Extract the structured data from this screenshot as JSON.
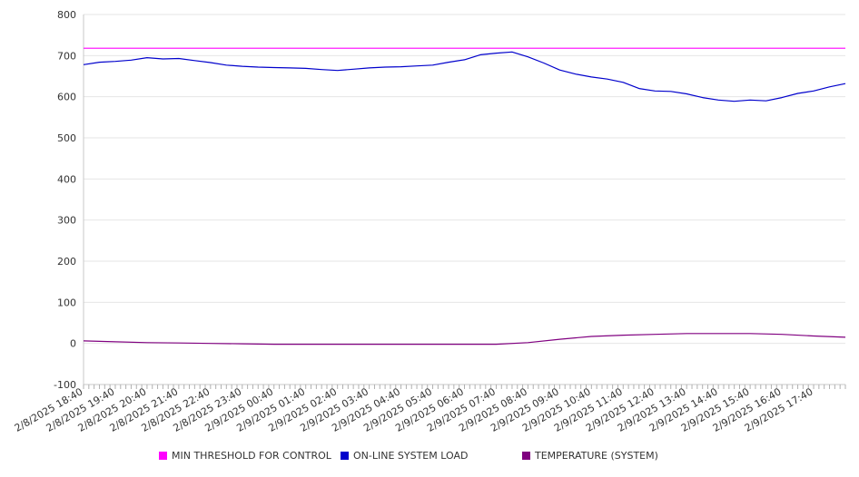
{
  "chart_data": {
    "type": "line",
    "title": "",
    "xlabel": "",
    "ylabel": "",
    "ylim": [
      -100,
      800
    ],
    "yticks": [
      -100,
      0,
      100,
      200,
      300,
      400,
      500,
      600,
      700,
      800
    ],
    "grid": true,
    "legend_position": "bottom",
    "x_tick_labels": [
      "2/8/2025 18:40",
      "2/8/2025 19:40",
      "2/8/2025 20:40",
      "2/8/2025 21:40",
      "2/8/2025 22:40",
      "2/8/2025 23:40",
      "2/9/2025 00:40",
      "2/9/2025 01:40",
      "2/9/2025 02:40",
      "2/9/2025 03:40",
      "2/9/2025 04:40",
      "2/9/2025 05:40",
      "2/9/2025 06:40",
      "2/9/2025 07:40",
      "2/9/2025 08:40",
      "2/9/2025 09:40",
      "2/9/2025 10:40",
      "2/9/2025 11:40",
      "2/9/2025 12:40",
      "2/9/2025 13:40",
      "2/9/2025 14:40",
      "2/9/2025 15:40",
      "2/9/2025 16:40",
      "2/9/2025 17:40"
    ],
    "x_range": [
      "2/8/2025 18:40",
      "2/9/2025 18:40"
    ],
    "series": [
      {
        "name": "MIN THRESHOLD FOR CONTROL",
        "color": "#ff00ff",
        "x": [
          "2/8/2025 18:40",
          "2/9/2025 18:40"
        ],
        "values": [
          718,
          718
        ]
      },
      {
        "name": "ON-LINE SYSTEM LOAD",
        "color": "#0000cc",
        "x": [
          "2/8/2025 18:40",
          "2/8/2025 19:10",
          "2/8/2025 19:40",
          "2/8/2025 20:10",
          "2/8/2025 20:40",
          "2/8/2025 21:10",
          "2/8/2025 21:40",
          "2/8/2025 22:10",
          "2/8/2025 22:40",
          "2/8/2025 23:10",
          "2/8/2025 23:40",
          "2/9/2025 00:10",
          "2/9/2025 00:40",
          "2/9/2025 01:10",
          "2/9/2025 01:40",
          "2/9/2025 02:10",
          "2/9/2025 02:40",
          "2/9/2025 03:10",
          "2/9/2025 03:40",
          "2/9/2025 04:10",
          "2/9/2025 04:40",
          "2/9/2025 05:10",
          "2/9/2025 05:40",
          "2/9/2025 06:10",
          "2/9/2025 06:40",
          "2/9/2025 07:10",
          "2/9/2025 07:40",
          "2/9/2025 08:10",
          "2/9/2025 08:40",
          "2/9/2025 09:10",
          "2/9/2025 09:40",
          "2/9/2025 10:10",
          "2/9/2025 10:40",
          "2/9/2025 11:10",
          "2/9/2025 11:40",
          "2/9/2025 12:10",
          "2/9/2025 12:40",
          "2/9/2025 13:10",
          "2/9/2025 13:40",
          "2/9/2025 14:10",
          "2/9/2025 14:40",
          "2/9/2025 15:10",
          "2/9/2025 15:40",
          "2/9/2025 16:10",
          "2/9/2025 16:40",
          "2/9/2025 17:10",
          "2/9/2025 17:40",
          "2/9/2025 18:10",
          "2/9/2025 18:40"
        ],
        "values": [
          678,
          684,
          686,
          689,
          695,
          692,
          693,
          688,
          683,
          677,
          674,
          672,
          671,
          670,
          669,
          666,
          664,
          667,
          670,
          672,
          673,
          675,
          677,
          684,
          690,
          702,
          706,
          709,
          697,
          682,
          665,
          655,
          648,
          643,
          635,
          620,
          614,
          613,
          607,
          598,
          592,
          589,
          592,
          590,
          598,
          608,
          614,
          624,
          632
        ]
      },
      {
        "name": "TEMPERATURE (SYSTEM)",
        "color": "#800080",
        "x": [
          "2/8/2025 18:40",
          "2/8/2025 19:40",
          "2/8/2025 20:40",
          "2/8/2025 21:40",
          "2/8/2025 22:40",
          "2/8/2025 23:40",
          "2/9/2025 00:40",
          "2/9/2025 01:40",
          "2/9/2025 02:40",
          "2/9/2025 03:40",
          "2/9/2025 04:40",
          "2/9/2025 05:40",
          "2/9/2025 06:40",
          "2/9/2025 07:40",
          "2/9/2025 08:40",
          "2/9/2025 09:40",
          "2/9/2025 10:40",
          "2/9/2025 11:40",
          "2/9/2025 12:40",
          "2/9/2025 13:40",
          "2/9/2025 14:40",
          "2/9/2025 15:40",
          "2/9/2025 16:40",
          "2/9/2025 17:40",
          "2/9/2025 18:40"
        ],
        "values": [
          6,
          4,
          2,
          1,
          0,
          -1,
          -2,
          -2,
          -2,
          -2,
          -2,
          -2,
          -2,
          -2,
          2,
          10,
          17,
          20,
          22,
          24,
          24,
          24,
          22,
          18,
          15
        ]
      }
    ]
  }
}
